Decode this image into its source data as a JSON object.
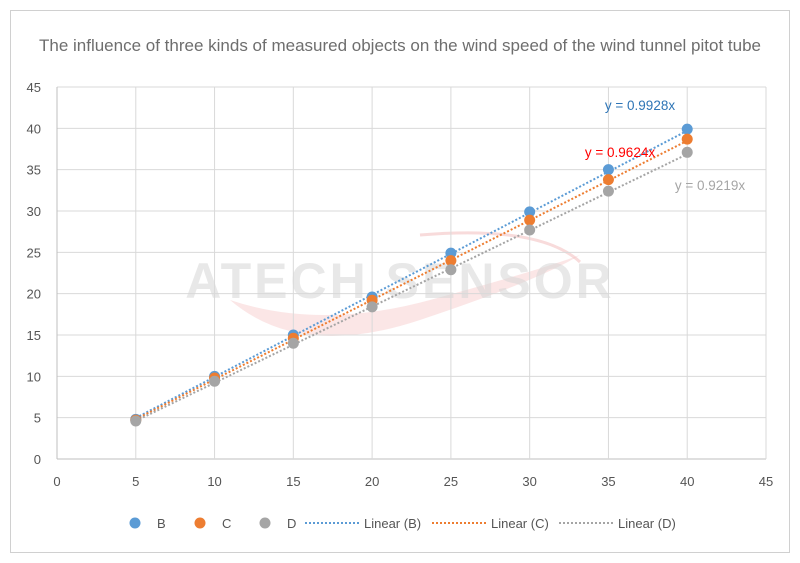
{
  "chart_data": {
    "type": "scatter",
    "title": "The influence of three kinds of measured objects on the wind speed of the wind tunnel pitot tube",
    "xlabel": "",
    "ylabel": "",
    "xlim": [
      0,
      45
    ],
    "ylim": [
      0,
      45
    ],
    "xticks": [
      "0",
      "5",
      "10",
      "15",
      "20",
      "25",
      "30",
      "35",
      "40",
      "45"
    ],
    "yticks": [
      "0",
      "5",
      "10",
      "15",
      "20",
      "25",
      "30",
      "35",
      "40",
      "45"
    ],
    "grid": true,
    "legend_position": "bottom",
    "x": [
      5,
      10,
      15,
      20,
      25,
      30,
      35,
      40
    ],
    "series": [
      {
        "name": "B",
        "color": "#5b9bd5",
        "values": [
          4.8,
          10.0,
          15.0,
          19.6,
          24.9,
          29.9,
          35.0,
          39.9
        ],
        "trendline": {
          "name": "Linear (B)",
          "slope": 0.9928,
          "equation": "y = 0.9928x",
          "label_color": "#2e75b6"
        }
      },
      {
        "name": "C",
        "color": "#ed7d31",
        "values": [
          4.7,
          9.8,
          14.6,
          19.2,
          24.0,
          28.9,
          33.8,
          38.7
        ],
        "trendline": {
          "name": "Linear (C)",
          "slope": 0.9624,
          "equation": "y = 0.9624x",
          "label_color": "#ff0000"
        }
      },
      {
        "name": "D",
        "color": "#a5a5a5",
        "values": [
          4.6,
          9.4,
          14.0,
          18.4,
          22.9,
          27.7,
          32.4,
          37.1
        ],
        "trendline": {
          "name": "Linear (D)",
          "slope": 0.9219,
          "equation": "y = 0.9219x",
          "label_color": "#a5a5a5"
        }
      }
    ]
  },
  "watermark": {
    "text": "ATECH SENSOR"
  },
  "icons": {
    "legend_marker": "circle-icon",
    "legend_line": "dotted-line-icon"
  }
}
